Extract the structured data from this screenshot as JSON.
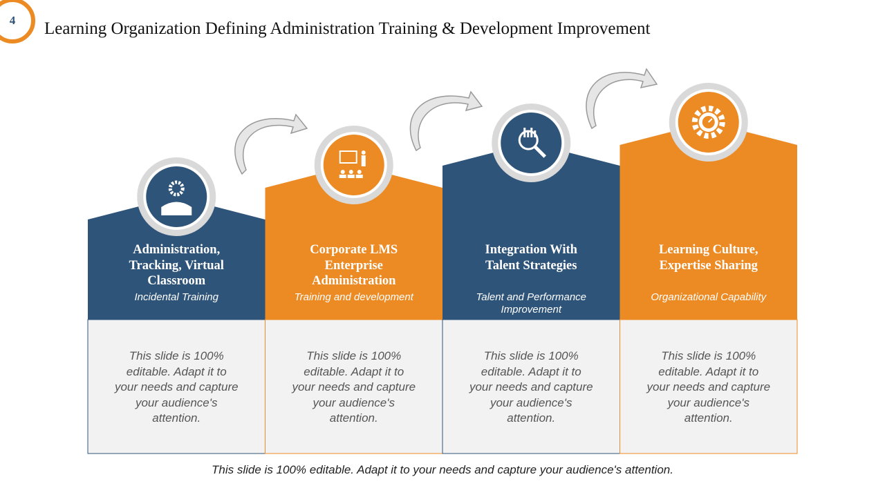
{
  "slide_number": "4",
  "title": "Learning Organization Defining Administration Training & Development Improvement",
  "columns": [
    {
      "title_lines": [
        "Administration,",
        "Tracking,  Virtual",
        "Classroom"
      ],
      "subtitle": "Incidental Training",
      "body": "This slide is 100% editable. Adapt it to your needs and capture your audience's attention.",
      "color": "#2e5479"
    },
    {
      "title_lines": [
        "Corporate LMS",
        "Enterprise",
        "Administration"
      ],
      "subtitle": "Training and development",
      "body": "This slide is 100% editable. Adapt it to your needs and capture your audience's attention.",
      "color": "#ec8a23"
    },
    {
      "title_lines": [
        "Integration With",
        "Talent Strategies"
      ],
      "subtitle": "Talent and Performance Improvement",
      "body": "This slide is 100% editable. Adapt it to your needs and capture your audience's attention.",
      "color": "#2e5479"
    },
    {
      "title_lines": [
        "Learning Culture,",
        "Expertise Sharing"
      ],
      "subtitle": "Organizational Capability",
      "body": "This slide is 100% editable. Adapt it to your needs and capture your audience's attention.",
      "color": "#ec8a23"
    }
  ],
  "footer": "This slide is 100% editable. Adapt it to your needs and capture your audience's attention."
}
